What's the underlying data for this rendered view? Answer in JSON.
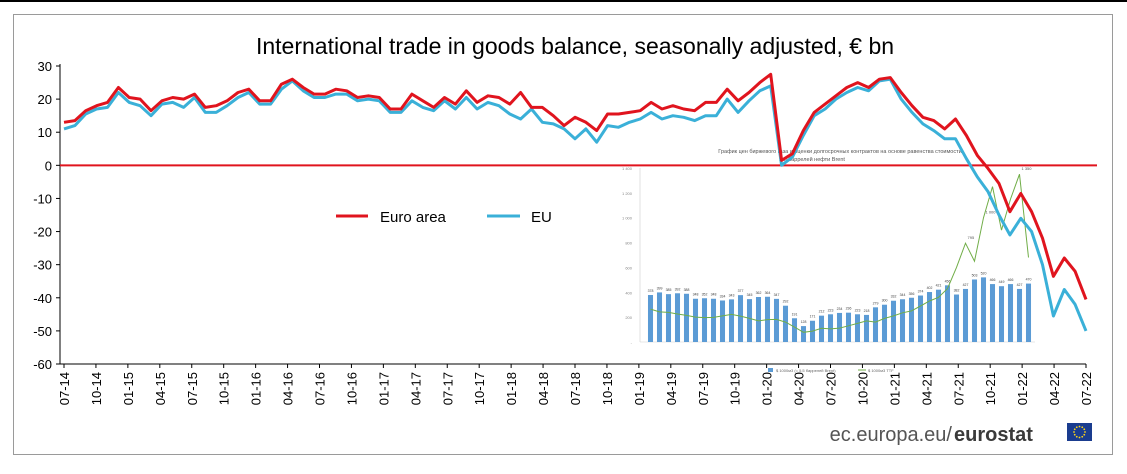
{
  "chart_data": {
    "type": "line",
    "title": "International trade in goods balance, seasonally adjusted, € bn",
    "ylim": [
      -60,
      30
    ],
    "yticks": [
      "30",
      "20",
      "10",
      "0",
      "-10",
      "-20",
      "-30",
      "-40",
      "-50",
      "-60"
    ],
    "ytick_values": [
      30,
      20,
      10,
      0,
      -10,
      -20,
      -30,
      -40,
      -50,
      -60
    ],
    "xtick_labels": [
      "07-14",
      "10-14",
      "01-15",
      "04-15",
      "07-15",
      "10-15",
      "01-16",
      "04-16",
      "07-16",
      "10-16",
      "01-17",
      "04-17",
      "07-17",
      "10-17",
      "01-18",
      "04-18",
      "07-18",
      "10-18",
      "01-19",
      "04-19",
      "07-19",
      "10-19",
      "01-20",
      "04-20",
      "07-20",
      "10-20",
      "01-21",
      "04-21",
      "07-21",
      "10-21",
      "01-22",
      "04-22",
      "07-22"
    ],
    "grid": false,
    "legend": "middle-left",
    "zero_line": true,
    "series": [
      {
        "name": "Euro area",
        "color": "#e0141e",
        "values": [
          13,
          13.5,
          16.5,
          18,
          19,
          23.5,
          20.5,
          20,
          16.5,
          19.5,
          20.5,
          20,
          21.5,
          17.5,
          18,
          19.5,
          22,
          23,
          19.5,
          19.5,
          24.5,
          26,
          23.5,
          21.5,
          21.5,
          23,
          22.5,
          20.5,
          21,
          20.5,
          17,
          17,
          21.5,
          19.5,
          17.5,
          20.5,
          18.5,
          22.5,
          19,
          21,
          20.5,
          18.5,
          22,
          17.5,
          17.5,
          15,
          12,
          14.5,
          13,
          10.5,
          15.5,
          15.5,
          16,
          16.5,
          19,
          17,
          18,
          17,
          16.5,
          19,
          19,
          23,
          19.5,
          22,
          25,
          27.5,
          1.5,
          3.5,
          10.5,
          16,
          18.5,
          21,
          23.5,
          25,
          23.5,
          26,
          26.5,
          22,
          18,
          14.5,
          13.5,
          11,
          14,
          9,
          3,
          -1,
          -5.5,
          -14,
          -8.5,
          -14,
          -22,
          -33.5,
          -28,
          -32,
          -40.5
        ]
      },
      {
        "name": "EU",
        "color": "#3ab0d8",
        "values": [
          11,
          12,
          15.5,
          17,
          17.5,
          22,
          19,
          18,
          15,
          18.5,
          19,
          17.5,
          20.5,
          16,
          16,
          18,
          20.5,
          22,
          18.5,
          18.5,
          23,
          25.5,
          22.5,
          20.5,
          20.5,
          21.5,
          21.5,
          19.5,
          20,
          19.5,
          16,
          16,
          19.5,
          17.5,
          16.5,
          19.5,
          17,
          20.5,
          17,
          19,
          18,
          15.5,
          14,
          17,
          13,
          12.5,
          11,
          8,
          11,
          7,
          12,
          11.5,
          13,
          14,
          16,
          14,
          15,
          14.5,
          13.5,
          15,
          15,
          20,
          16,
          19.5,
          22.5,
          24,
          0,
          2.5,
          9,
          15,
          17,
          20,
          22,
          23.5,
          22.5,
          25.5,
          26,
          20,
          16,
          12.5,
          10.5,
          8,
          8,
          2,
          -3.5,
          -8,
          -15,
          -21,
          -16,
          -20,
          -30,
          -45.5,
          -37.5,
          -42,
          -50
        ]
      }
    ],
    "inset": {
      "title_line1": "График цен биржевого газа и оценки долгосрочных контрактов на основе равенства стоимости",
      "title_line2": "5.5 баррелей нефти Brent",
      "yticks": [
        "1 400",
        "1 200",
        "1 000",
        "800",
        "600",
        "400",
        "200",
        "-"
      ],
      "bar_values": [
        378,
        399,
        385,
        392,
        388,
        348,
        352,
        348,
        334,
        343,
        377,
        345,
        362,
        364,
        347,
        292,
        191,
        128,
        171,
        212,
        223,
        234,
        236,
        223,
        218,
        279,
        300,
        332,
        344,
        356,
        374,
        402,
        421,
        456,
        382,
        427,
        503,
        520,
        466,
        449,
        466,
        427,
        470
      ],
      "bar_value_labels": [
        "378",
        "399",
        "385",
        "392",
        "388",
        "348",
        "352",
        "348",
        "334",
        "343",
        "377",
        "345",
        "362",
        "364",
        "347",
        "292",
        "191",
        "128",
        "171",
        "212",
        "223",
        "234",
        "236",
        "223",
        "218",
        "279",
        "300",
        "332",
        "344",
        "356",
        "374",
        "402",
        "421",
        "456",
        "382",
        "427",
        "503",
        "520",
        "466",
        "449",
        "466",
        "427",
        "470"
      ],
      "line_values": [
        265,
        242,
        238,
        225,
        214,
        200,
        196,
        198,
        210,
        222,
        208,
        190,
        170,
        180,
        182,
        160,
        120,
        78,
        88,
        110,
        105,
        112,
        130,
        150,
        170,
        160,
        190,
        210,
        235,
        250,
        290,
        330,
        360,
        430,
        600,
        795,
        650,
        1000,
        1250,
        900,
        1150,
        1350,
        680
      ],
      "line_labels": [
        "795",
        "1 000",
        "1 350"
      ],
      "legend_bar": "$ 1000м3 (= 5,5 баррелей Brent)",
      "legend_line": "$ 1000м3 TTF",
      "colors": {
        "bar": "#5b9bd5",
        "line": "#70ad47"
      }
    }
  },
  "footer": {
    "site_prefix": "ec.europa.eu/",
    "brand": "eurostat"
  },
  "colors": {
    "zero_line": "#e0141e",
    "axis": "#000000",
    "flag": "#1a3c8f",
    "flag_stars": "#ffd617"
  }
}
